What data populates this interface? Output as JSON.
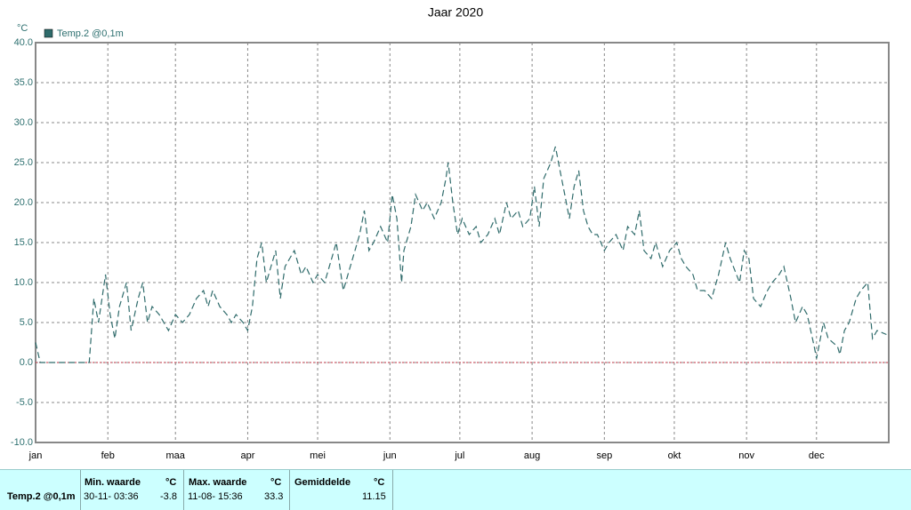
{
  "chart_data": {
    "type": "line",
    "title": "Jaar 2020",
    "y_unit": "°C",
    "xlim": [
      1,
      367
    ],
    "xticks": [
      {
        "value": 1,
        "label": "jan"
      },
      {
        "value": 32,
        "label": "feb"
      },
      {
        "value": 61,
        "label": "maa"
      },
      {
        "value": 92,
        "label": "apr"
      },
      {
        "value": 122,
        "label": "mei"
      },
      {
        "value": 153,
        "label": "jun"
      },
      {
        "value": 183,
        "label": "jul"
      },
      {
        "value": 214,
        "label": "aug"
      },
      {
        "value": 245,
        "label": "sep"
      },
      {
        "value": 275,
        "label": "okt"
      },
      {
        "value": 306,
        "label": "nov"
      },
      {
        "value": 336,
        "label": "dec"
      }
    ],
    "ylim": [
      -10,
      40
    ],
    "yticks": [
      {
        "value": -10,
        "label": "-10.0"
      },
      {
        "value": -5,
        "label": "-5.0"
      },
      {
        "value": 0,
        "label": "0.0"
      },
      {
        "value": 5,
        "label": "5.0"
      },
      {
        "value": 10,
        "label": "10.0"
      },
      {
        "value": 15,
        "label": "15.0"
      },
      {
        "value": 20,
        "label": "20.0"
      },
      {
        "value": 25,
        "label": "25.0"
      },
      {
        "value": 30,
        "label": "30.0"
      },
      {
        "value": 35,
        "label": "35.0"
      },
      {
        "value": 40,
        "label": "40.0"
      }
    ],
    "grid": true,
    "x": [
      1,
      3,
      24,
      26,
      28,
      31,
      33,
      35,
      37,
      40,
      42,
      45,
      47,
      49,
      51,
      54,
      58,
      61,
      64,
      67,
      70,
      73,
      75,
      77,
      80,
      83,
      85,
      87,
      90,
      92,
      94,
      96,
      98,
      100,
      102,
      104,
      106,
      108,
      110,
      112,
      115,
      117,
      120,
      122,
      125,
      128,
      130,
      133,
      135,
      138,
      140,
      142,
      144,
      146,
      149,
      152,
      154,
      156,
      158,
      159,
      162,
      164,
      167,
      169,
      172,
      175,
      177,
      178,
      180,
      182,
      184,
      187,
      190,
      192,
      195,
      198,
      200,
      203,
      205,
      208,
      210,
      213,
      215,
      217,
      219,
      222,
      224,
      226,
      228,
      230,
      232,
      234,
      236,
      238,
      240,
      242,
      245,
      247,
      250,
      253,
      255,
      258,
      260,
      262,
      265,
      267,
      270,
      273,
      276,
      278,
      280,
      283,
      285,
      288,
      291,
      294,
      297,
      299,
      303,
      305,
      307,
      309,
      312,
      315,
      317,
      320,
      322,
      325,
      327,
      330,
      332,
      335,
      336,
      339,
      341,
      345,
      346,
      348,
      350,
      353,
      355,
      358,
      360,
      362,
      366
    ],
    "series": [
      {
        "name": "Temp.2 @0,1m",
        "color": "#2f6b6b",
        "values": [
          2.5,
          0,
          0,
          8,
          5,
          11,
          6,
          3,
          7,
          10,
          4,
          8,
          10,
          5,
          7,
          6,
          4,
          6,
          5,
          6,
          8,
          9,
          7,
          9,
          7,
          6,
          5,
          6,
          5,
          4,
          7,
          13,
          15,
          10,
          12,
          14,
          8,
          12,
          13,
          14,
          11,
          12,
          10,
          11,
          10,
          13,
          15,
          9,
          11,
          14,
          16,
          19,
          14,
          15,
          17,
          15,
          21,
          18,
          10,
          14,
          17,
          21,
          19,
          20,
          18,
          20,
          23,
          25,
          20,
          16,
          18,
          16,
          17,
          15,
          16,
          18,
          16,
          20,
          18,
          19,
          17,
          18,
          22,
          17,
          23,
          25,
          27,
          24,
          21,
          18,
          22,
          24,
          19,
          17,
          16,
          16,
          14,
          15,
          16,
          14,
          17,
          16,
          19,
          14,
          13,
          15,
          12,
          14,
          15,
          13,
          12,
          11,
          9,
          9,
          8,
          11,
          15,
          13,
          10,
          14,
          13,
          8,
          7,
          9,
          10,
          11,
          12,
          8,
          5,
          7,
          6,
          2,
          0.5,
          5,
          3,
          2,
          1,
          4,
          5,
          8,
          9,
          10,
          3,
          4,
          3.5
        ]
      }
    ]
  },
  "table": {
    "header": [
      "Min. waarde",
      "°C",
      "Max. waarde",
      "°C",
      "Gemiddelde",
      "°C"
    ],
    "rows": [
      [
        "Temp.2 @0,1m",
        "30-11- 03:36",
        "-3.8",
        "11-08- 15:36",
        "33.3",
        "11.15"
      ]
    ]
  }
}
